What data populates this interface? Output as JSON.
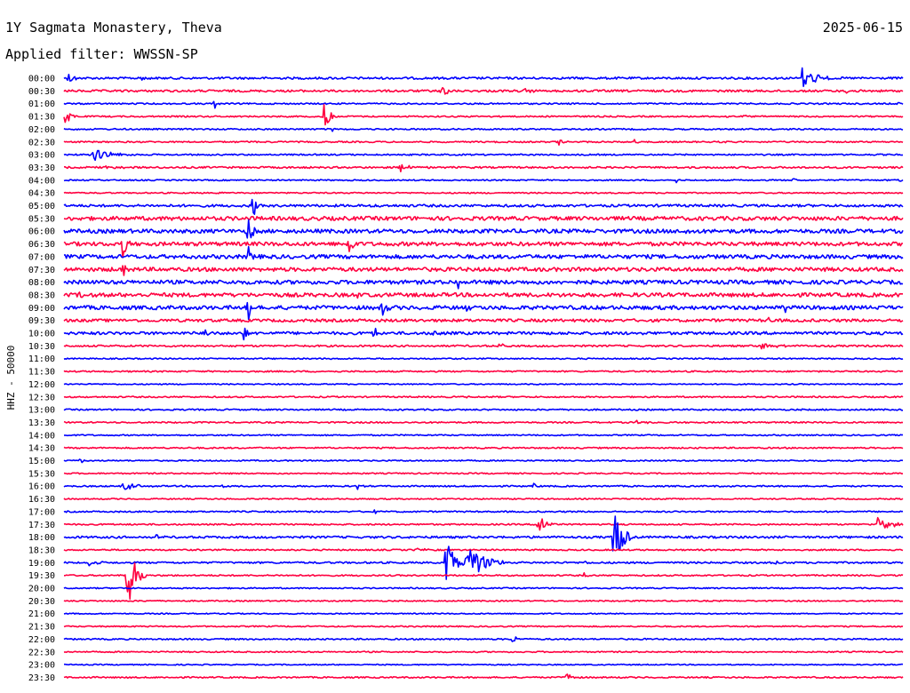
{
  "header": {
    "station": "1Y Sagmata Monastery, Theva",
    "date": "2025-06-15",
    "filter": "Applied filter: WWSSN-SP"
  },
  "colors": {
    "trace_a": "#0000ff",
    "trace_b": "#ff0040",
    "text": "#000000",
    "background": "#ffffff"
  },
  "chart_data": {
    "type": "line",
    "ylabel": "HHZ - 50000",
    "rows": [
      {
        "label": "00:00",
        "color": "#0000ff",
        "noise": 1.2,
        "events": [
          {
            "x": 0.005,
            "amp": 8,
            "len": 0.012
          },
          {
            "x": 0.09,
            "amp": 4,
            "len": 0.012
          },
          {
            "x": 0.88,
            "amp": 14,
            "len": 0.03
          }
        ]
      },
      {
        "label": "00:30",
        "color": "#ff0040",
        "noise": 1.2,
        "events": [
          {
            "x": 0.45,
            "amp": 7,
            "len": 0.015
          },
          {
            "x": 0.55,
            "amp": 2,
            "len": 0.03
          },
          {
            "x": 0.93,
            "amp": 2,
            "len": 0.02
          }
        ]
      },
      {
        "label": "01:00",
        "color": "#0000ff",
        "noise": 0.8,
        "events": [
          {
            "x": 0.18,
            "amp": 7,
            "len": 0.004
          },
          {
            "x": 0.995,
            "amp": 4,
            "len": 0.004
          }
        ]
      },
      {
        "label": "01:30",
        "color": "#ff0040",
        "noise": 0.8,
        "events": [
          {
            "x": 0.0,
            "amp": 14,
            "len": 0.015
          },
          {
            "x": 0.31,
            "amp": 14,
            "len": 0.016
          },
          {
            "x": 0.79,
            "amp": 3,
            "len": 0.004
          },
          {
            "x": 0.81,
            "amp": 3,
            "len": 0.004
          }
        ]
      },
      {
        "label": "02:00",
        "color": "#0000ff",
        "noise": 0.8,
        "events": [
          {
            "x": 0.32,
            "amp": 3,
            "len": 0.005
          }
        ]
      },
      {
        "label": "02:30",
        "color": "#ff0040",
        "noise": 0.8,
        "events": [
          {
            "x": 0.22,
            "amp": 2,
            "len": 0.004
          },
          {
            "x": 0.59,
            "amp": 5,
            "len": 0.008
          },
          {
            "x": 0.68,
            "amp": 3,
            "len": 0.004
          },
          {
            "x": 0.79,
            "amp": 2,
            "len": 0.004
          }
        ]
      },
      {
        "label": "03:00",
        "color": "#0000ff",
        "noise": 0.8,
        "events": [
          {
            "x": 0.035,
            "amp": 7,
            "len": 0.045
          }
        ]
      },
      {
        "label": "03:30",
        "color": "#ff0040",
        "noise": 1.0,
        "events": [
          {
            "x": 0.05,
            "amp": 2,
            "len": 0.03
          },
          {
            "x": 0.4,
            "amp": 5,
            "len": 0.025
          }
        ]
      },
      {
        "label": "04:00",
        "color": "#0000ff",
        "noise": 0.7,
        "events": [
          {
            "x": 0.73,
            "amp": 3,
            "len": 0.004
          },
          {
            "x": 0.87,
            "amp": 3,
            "len": 0.004
          },
          {
            "x": 0.995,
            "amp": 3,
            "len": 0.004
          }
        ]
      },
      {
        "label": "04:30",
        "color": "#ff0040",
        "noise": 0.7,
        "events": [
          {
            "x": 0.185,
            "amp": 3,
            "len": 0.004
          }
        ]
      },
      {
        "label": "05:00",
        "color": "#0000ff",
        "noise": 1.4,
        "events": [
          {
            "x": 0.225,
            "amp": 30,
            "len": 0.004
          },
          {
            "x": 0.37,
            "amp": 4,
            "len": 0.004
          }
        ]
      },
      {
        "label": "05:30",
        "color": "#ff0040",
        "noise": 2.2,
        "events": []
      },
      {
        "label": "06:00",
        "color": "#0000ff",
        "noise": 2.2,
        "events": [
          {
            "x": 0.22,
            "amp": 18,
            "len": 0.01
          },
          {
            "x": 0.74,
            "amp": 3,
            "len": 0.01
          }
        ]
      },
      {
        "label": "06:30",
        "color": "#ff0040",
        "noise": 2.2,
        "events": [
          {
            "x": 0.07,
            "amp": 16,
            "len": 0.008
          },
          {
            "x": 0.34,
            "amp": 16,
            "len": 0.008
          }
        ]
      },
      {
        "label": "07:00",
        "color": "#0000ff",
        "noise": 2.2,
        "events": [
          {
            "x": 0.22,
            "amp": 14,
            "len": 0.006
          }
        ]
      },
      {
        "label": "07:30",
        "color": "#ff0040",
        "noise": 2.2,
        "events": [
          {
            "x": 0.07,
            "amp": 10,
            "len": 0.005
          }
        ]
      },
      {
        "label": "08:00",
        "color": "#0000ff",
        "noise": 2.2,
        "events": [
          {
            "x": 0.47,
            "amp": 9,
            "len": 0.004
          }
        ]
      },
      {
        "label": "08:30",
        "color": "#ff0040",
        "noise": 2.2,
        "events": [
          {
            "x": 0.02,
            "amp": 5,
            "len": 0.004
          },
          {
            "x": 0.35,
            "amp": 6,
            "len": 0.006
          }
        ]
      },
      {
        "label": "09:00",
        "color": "#0000ff",
        "noise": 2.2,
        "events": [
          {
            "x": 0.22,
            "amp": 14,
            "len": 0.008
          },
          {
            "x": 0.38,
            "amp": 16,
            "len": 0.008
          },
          {
            "x": 0.48,
            "amp": 8,
            "len": 0.004
          },
          {
            "x": 0.86,
            "amp": 4,
            "len": 0.004
          }
        ]
      },
      {
        "label": "09:30",
        "color": "#ff0040",
        "noise": 1.6,
        "events": [
          {
            "x": 0.84,
            "amp": 4,
            "len": 0.004
          }
        ]
      },
      {
        "label": "10:00",
        "color": "#0000ff",
        "noise": 1.6,
        "events": [
          {
            "x": 0.17,
            "amp": 10,
            "len": 0.004
          },
          {
            "x": 0.37,
            "amp": 12,
            "len": 0.006
          },
          {
            "x": 0.44,
            "amp": 6,
            "len": 0.008
          },
          {
            "x": 0.215,
            "amp": 28,
            "len": 0.003
          }
        ]
      },
      {
        "label": "10:30",
        "color": "#ff0040",
        "noise": 1.0,
        "events": [
          {
            "x": 0.52,
            "amp": 5,
            "len": 0.008
          },
          {
            "x": 0.83,
            "amp": 4,
            "len": 0.04
          }
        ]
      },
      {
        "label": "11:00",
        "color": "#0000ff",
        "noise": 0.7,
        "events": []
      },
      {
        "label": "11:30",
        "color": "#ff0040",
        "noise": 0.8,
        "events": []
      },
      {
        "label": "12:00",
        "color": "#0000ff",
        "noise": 0.6,
        "events": []
      },
      {
        "label": "12:30",
        "color": "#ff0040",
        "noise": 0.8,
        "events": [
          {
            "x": 0.48,
            "amp": 2,
            "len": 0.004
          }
        ]
      },
      {
        "label": "13:00",
        "color": "#0000ff",
        "noise": 0.8,
        "events": []
      },
      {
        "label": "13:30",
        "color": "#ff0040",
        "noise": 0.8,
        "events": [
          {
            "x": 0.68,
            "amp": 2,
            "len": 0.03
          }
        ]
      },
      {
        "label": "14:00",
        "color": "#0000ff",
        "noise": 0.7,
        "events": []
      },
      {
        "label": "14:30",
        "color": "#ff0040",
        "noise": 0.8,
        "events": []
      },
      {
        "label": "15:00",
        "color": "#0000ff",
        "noise": 0.7,
        "events": [
          {
            "x": 0.02,
            "amp": 4,
            "len": 0.004
          }
        ]
      },
      {
        "label": "15:30",
        "color": "#ff0040",
        "noise": 0.7,
        "events": []
      },
      {
        "label": "16:00",
        "color": "#0000ff",
        "noise": 0.8,
        "events": [
          {
            "x": 0.07,
            "amp": 4,
            "len": 0.04
          },
          {
            "x": 0.19,
            "amp": 3,
            "len": 0.004
          },
          {
            "x": 0.35,
            "amp": 4,
            "len": 0.006
          },
          {
            "x": 0.56,
            "amp": 3,
            "len": 0.004
          }
        ]
      },
      {
        "label": "16:30",
        "color": "#ff0040",
        "noise": 0.7,
        "events": []
      },
      {
        "label": "17:00",
        "color": "#0000ff",
        "noise": 0.8,
        "events": [
          {
            "x": 0.28,
            "amp": 4,
            "len": 0.004
          },
          {
            "x": 0.37,
            "amp": 3,
            "len": 0.004
          }
        ]
      },
      {
        "label": "17:30",
        "color": "#ff0040",
        "noise": 0.8,
        "events": [
          {
            "x": 0.565,
            "amp": 18,
            "len": 0.016
          },
          {
            "x": 0.97,
            "amp": 8,
            "len": 0.03
          }
        ]
      },
      {
        "label": "18:00",
        "color": "#0000ff",
        "noise": 1.2,
        "events": [
          {
            "x": 0.11,
            "amp": 5,
            "len": 0.006
          },
          {
            "x": 0.655,
            "amp": 40,
            "len": 0.02
          }
        ]
      },
      {
        "label": "18:30",
        "color": "#ff0040",
        "noise": 0.8,
        "events": [
          {
            "x": 0.42,
            "amp": 3,
            "len": 0.02
          }
        ]
      },
      {
        "label": "19:00",
        "color": "#0000ff",
        "noise": 1.0,
        "events": [
          {
            "x": 0.03,
            "amp": 5,
            "len": 0.015
          },
          {
            "x": 0.455,
            "amp": 30,
            "len": 0.02
          },
          {
            "x": 0.48,
            "amp": 24,
            "len": 0.04
          },
          {
            "x": 0.62,
            "amp": 4,
            "len": 0.004
          },
          {
            "x": 0.85,
            "amp": 3,
            "len": 0.004
          }
        ]
      },
      {
        "label": "19:30",
        "color": "#ff0040",
        "noise": 0.8,
        "events": [
          {
            "x": 0.075,
            "amp": 40,
            "len": 0.02
          },
          {
            "x": 0.62,
            "amp": 4,
            "len": 0.004
          }
        ]
      },
      {
        "label": "20:00",
        "color": "#0000ff",
        "noise": 0.7,
        "events": []
      },
      {
        "label": "20:30",
        "color": "#ff0040",
        "noise": 0.7,
        "events": []
      },
      {
        "label": "21:00",
        "color": "#0000ff",
        "noise": 0.6,
        "events": []
      },
      {
        "label": "21:30",
        "color": "#ff0040",
        "noise": 0.7,
        "events": []
      },
      {
        "label": "22:00",
        "color": "#0000ff",
        "noise": 0.8,
        "events": [
          {
            "x": 0.535,
            "amp": 7,
            "len": 0.008
          }
        ]
      },
      {
        "label": "22:30",
        "color": "#ff0040",
        "noise": 0.7,
        "events": []
      },
      {
        "label": "23:00",
        "color": "#0000ff",
        "noise": 0.6,
        "events": []
      },
      {
        "label": "23:30",
        "color": "#ff0040",
        "noise": 0.8,
        "events": [
          {
            "x": 0.6,
            "amp": 8,
            "len": 0.008
          }
        ]
      }
    ]
  }
}
